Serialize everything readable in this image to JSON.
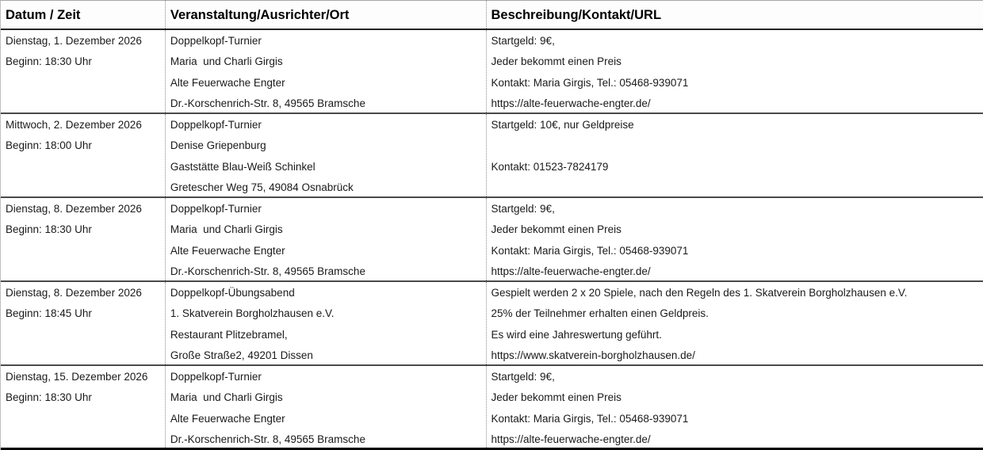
{
  "table": {
    "columns": [
      "Datum / Zeit",
      "Veranstaltung/Ausrichter/Ort",
      "Beschreibung/Kontakt/URL"
    ],
    "rows": [
      {
        "datum": [
          "Dienstag, 1. Dezember 2026",
          "Beginn: 18:30 Uhr",
          "",
          ""
        ],
        "veranstaltung": [
          "Doppelkopf-Turnier",
          "Maria  und Charli Girgis",
          "Alte Feuerwache Engter",
          "Dr.-Korschenrich-Str. 8, 49565 Bramsche"
        ],
        "beschreibung": [
          "Startgeld: 9€,",
          "Jeder bekommt einen Preis",
          "Kontakt: Maria Girgis, Tel.: 05468-939071",
          "https://alte-feuerwache-engter.de/"
        ]
      },
      {
        "datum": [
          "Mittwoch, 2. Dezember 2026",
          "Beginn: 18:00 Uhr",
          "",
          ""
        ],
        "veranstaltung": [
          "Doppelkopf-Turnier",
          "Denise Griepenburg",
          "Gaststätte Blau-Weiß Schinkel",
          "Gretescher Weg 75, 49084 Osnabrück"
        ],
        "beschreibung": [
          "Startgeld: 10€, nur Geldpreise",
          "",
          "Kontakt: 01523-7824179",
          ""
        ]
      },
      {
        "datum": [
          "Dienstag, 8. Dezember 2026",
          "Beginn: 18:30 Uhr",
          "",
          ""
        ],
        "veranstaltung": [
          "Doppelkopf-Turnier",
          "Maria  und Charli Girgis",
          "Alte Feuerwache Engter",
          "Dr.-Korschenrich-Str. 8, 49565 Bramsche"
        ],
        "beschreibung": [
          "Startgeld: 9€,",
          "Jeder bekommt einen Preis",
          "Kontakt: Maria Girgis, Tel.: 05468-939071",
          "https://alte-feuerwache-engter.de/"
        ]
      },
      {
        "datum": [
          "Dienstag, 8. Dezember 2026",
          "Beginn: 18:45 Uhr",
          "",
          ""
        ],
        "veranstaltung": [
          "Doppelkopf-Übungsabend",
          "1. Skatverein Borgholzhausen e.V.",
          "Restaurant Plitzebramel,",
          "Große Straße2, 49201 Dissen"
        ],
        "beschreibung": [
          "Gespielt werden 2 x 20 Spiele, nach den Regeln des 1. Skatverein Borgholzhausen e.V.",
          "25% der Teilnehmer erhalten einen Geldpreis.",
          "Es wird eine Jahreswertung geführt.",
          "https://www.skatverein-borgholzhausen.de/"
        ]
      },
      {
        "datum": [
          "Dienstag, 15. Dezember 2026",
          "Beginn: 18:30 Uhr",
          "",
          ""
        ],
        "veranstaltung": [
          "Doppelkopf-Turnier",
          "Maria  und Charli Girgis",
          "Alte Feuerwache Engter",
          "Dr.-Korschenrich-Str. 8, 49565 Bramsche"
        ],
        "beschreibung": [
          "Startgeld: 9€,",
          "Jeder bekommt einen Preis",
          "Kontakt: Maria Girgis, Tel.: 05468-939071",
          "https://alte-feuerwache-engter.de/"
        ]
      }
    ]
  }
}
